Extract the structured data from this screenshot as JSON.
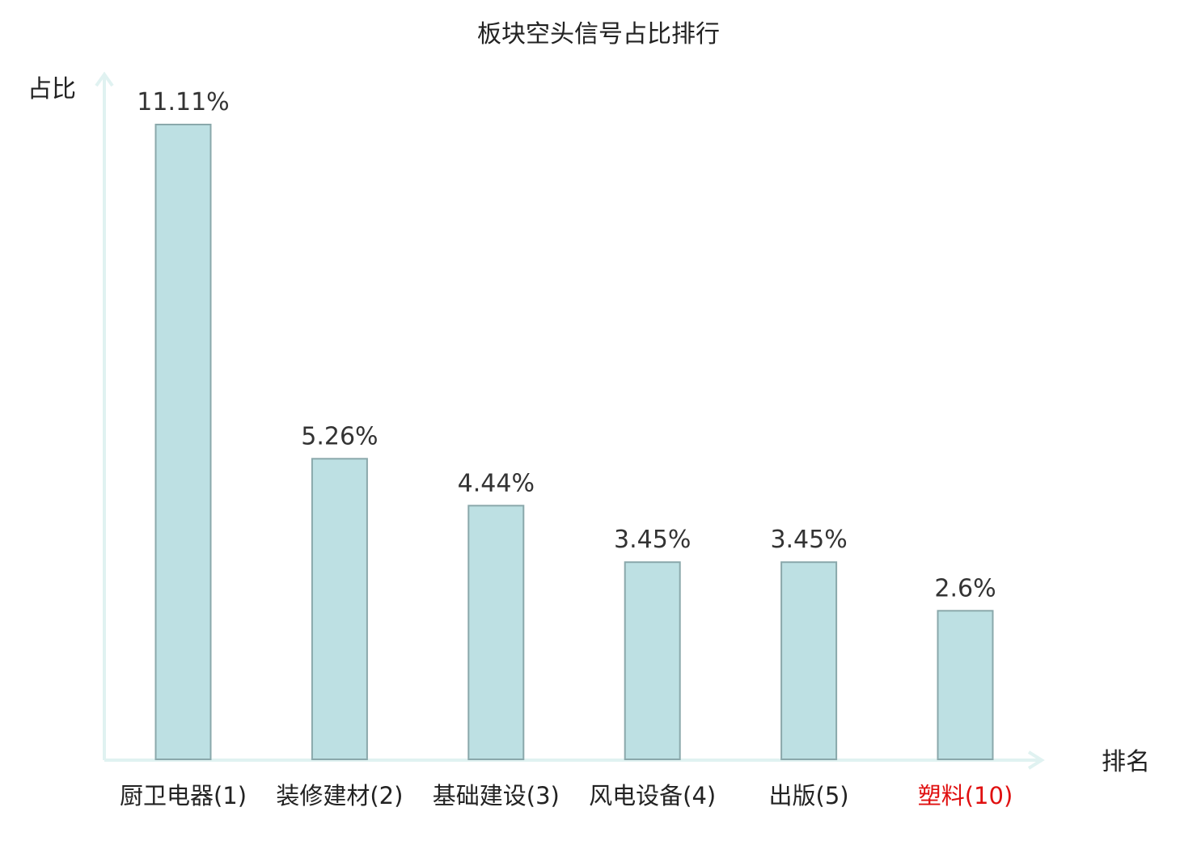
{
  "chart_data": {
    "type": "bar",
    "title": "板块空头信号占比排行",
    "ylabel": "占比",
    "xlabel": "排名",
    "categories": [
      "厨卫电器(1)",
      "装修建材(2)",
      "基础建设(3)",
      "风电设备(4)",
      "出版(5)",
      "塑料(10)"
    ],
    "values": [
      11.11,
      5.26,
      4.44,
      3.45,
      3.45,
      2.6
    ],
    "value_labels": [
      "11.11%",
      "5.26%",
      "4.44%",
      "3.45%",
      "3.45%",
      "2.6%"
    ],
    "ylim": [
      0,
      11.11
    ],
    "highlight_index": 5,
    "grid": false,
    "legend": "none"
  },
  "colors": {
    "bar_fill": "#bde0e3",
    "bar_stroke": "#8aa8ab",
    "axis": "#e0f2f1",
    "highlight_text": "#e01010",
    "text": "#222222"
  }
}
